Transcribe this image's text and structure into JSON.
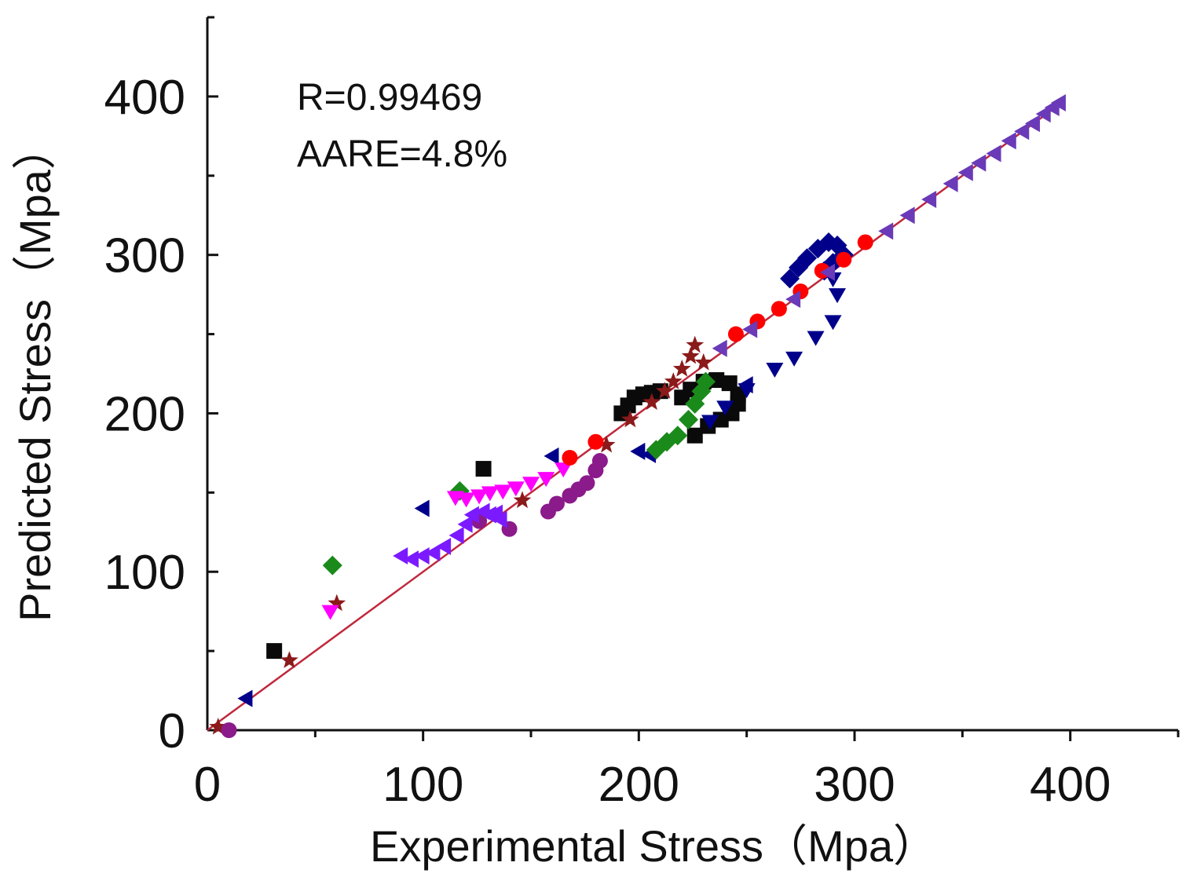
{
  "chart_data": {
    "type": "scatter",
    "title": "",
    "xlabel": "Experimental Stress（Mpa）",
    "ylabel": "Predicted Stress（Mpa）",
    "xlim": [
      0,
      450
    ],
    "ylim": [
      0,
      450
    ],
    "xticks": [
      0,
      100,
      200,
      300,
      400
    ],
    "yticks": [
      0,
      100,
      200,
      300,
      400
    ],
    "grid": false,
    "annotations": [
      "R=0.99469",
      "AARE=4.8%"
    ],
    "fit_line": {
      "name": "fit",
      "color": "#c0283c",
      "points": [
        [
          0,
          0
        ],
        [
          395,
          395
        ]
      ]
    },
    "series": [
      {
        "name": "black squares",
        "marker": "square",
        "color": "#0a0a0a",
        "points": [
          [
            31,
            50
          ],
          [
            128,
            165
          ],
          [
            192,
            200
          ],
          [
            195,
            205
          ],
          [
            198,
            210
          ],
          [
            202,
            212
          ],
          [
            206,
            213
          ],
          [
            210,
            214
          ],
          [
            226,
            186
          ],
          [
            232,
            192
          ],
          [
            238,
            196
          ],
          [
            243,
            200
          ],
          [
            246,
            206
          ],
          [
            246,
            212
          ],
          [
            242,
            219
          ],
          [
            236,
            221
          ],
          [
            230,
            220
          ],
          [
            224,
            215
          ],
          [
            220,
            210
          ]
        ]
      },
      {
        "name": "brown stars",
        "marker": "star",
        "color": "#8b1a1a",
        "points": [
          [
            5,
            2
          ],
          [
            38,
            44
          ],
          [
            60,
            80
          ],
          [
            146,
            145
          ],
          [
            185,
            180
          ],
          [
            196,
            196
          ],
          [
            206,
            207
          ],
          [
            212,
            214
          ],
          [
            216,
            220
          ],
          [
            220,
            228
          ],
          [
            224,
            236
          ],
          [
            226,
            243
          ],
          [
            230,
            232
          ]
        ]
      },
      {
        "name": "navy down triangles",
        "marker": "tri-down",
        "color": "#00008b",
        "points": [
          [
            233,
            195
          ],
          [
            240,
            204
          ],
          [
            250,
            215
          ],
          [
            263,
            228
          ],
          [
            272,
            235
          ],
          [
            282,
            248
          ],
          [
            290,
            258
          ],
          [
            292,
            275
          ],
          [
            290,
            285
          ]
        ]
      },
      {
        "name": "navy diamonds",
        "marker": "diamond",
        "color": "#00008b",
        "points": [
          [
            270,
            285
          ],
          [
            274,
            292
          ],
          [
            278,
            298
          ],
          [
            283,
            304
          ],
          [
            288,
            308
          ],
          [
            292,
            306
          ],
          [
            295,
            300
          ],
          [
            290,
            295
          ],
          [
            286,
            290
          ]
        ]
      },
      {
        "name": "navy left triangles",
        "marker": "tri-left",
        "color": "#00008b",
        "points": [
          [
            18,
            20
          ],
          [
            100,
            140
          ],
          [
            160,
            173
          ],
          [
            200,
            176
          ],
          [
            205,
            174
          ],
          [
            250,
            218
          ]
        ]
      },
      {
        "name": "green diamonds",
        "marker": "diamond",
        "color": "#1a8a1a",
        "points": [
          [
            58,
            104
          ],
          [
            117,
            151
          ],
          [
            208,
            177
          ],
          [
            213,
            182
          ],
          [
            218,
            186
          ],
          [
            223,
            196
          ],
          [
            226,
            206
          ],
          [
            229,
            214
          ],
          [
            231,
            220
          ]
        ]
      },
      {
        "name": "magenta down triangles",
        "marker": "tri-down",
        "color": "#ff00ff",
        "points": [
          [
            57,
            75
          ],
          [
            115,
            147
          ],
          [
            120,
            146
          ],
          [
            126,
            148
          ],
          [
            131,
            150
          ],
          [
            137,
            151
          ],
          [
            143,
            153
          ],
          [
            150,
            156
          ],
          [
            157,
            159
          ],
          [
            165,
            165
          ]
        ]
      },
      {
        "name": "purple circles",
        "marker": "circle",
        "color": "#8b1a8b",
        "points": [
          [
            10,
            0
          ],
          [
            126,
            132
          ],
          [
            140,
            127
          ],
          [
            158,
            138
          ],
          [
            162,
            143
          ],
          [
            168,
            148
          ],
          [
            172,
            152
          ],
          [
            176,
            156
          ],
          [
            180,
            164
          ],
          [
            182,
            170
          ]
        ]
      },
      {
        "name": "violet left triangles",
        "marker": "tri-left",
        "color": "#7b1aff",
        "points": [
          [
            90,
            110
          ],
          [
            95,
            108
          ],
          [
            100,
            110
          ],
          [
            105,
            112
          ],
          [
            110,
            116
          ],
          [
            116,
            123
          ],
          [
            120,
            130
          ],
          [
            123,
            136
          ],
          [
            128,
            138
          ],
          [
            131,
            136
          ],
          [
            134,
            137
          ],
          [
            136,
            133
          ]
        ]
      },
      {
        "name": "red circles",
        "marker": "circle",
        "color": "#ff0000",
        "points": [
          [
            168,
            172
          ],
          [
            180,
            182
          ],
          [
            245,
            250
          ],
          [
            255,
            258
          ],
          [
            265,
            266
          ],
          [
            275,
            277
          ],
          [
            285,
            290
          ],
          [
            295,
            297
          ],
          [
            305,
            308
          ]
        ]
      },
      {
        "name": "purple left triangles",
        "marker": "tri-left",
        "color": "#6a3ab8",
        "points": [
          [
            238,
            241
          ],
          [
            252,
            253
          ],
          [
            272,
            272
          ],
          [
            288,
            289
          ],
          [
            315,
            315
          ],
          [
            325,
            325
          ],
          [
            335,
            335
          ],
          [
            345,
            345
          ],
          [
            352,
            352
          ],
          [
            358,
            358
          ],
          [
            365,
            364
          ],
          [
            372,
            372
          ],
          [
            378,
            378
          ],
          [
            383,
            383
          ],
          [
            388,
            389
          ],
          [
            392,
            393
          ],
          [
            395,
            396
          ]
        ]
      }
    ]
  }
}
